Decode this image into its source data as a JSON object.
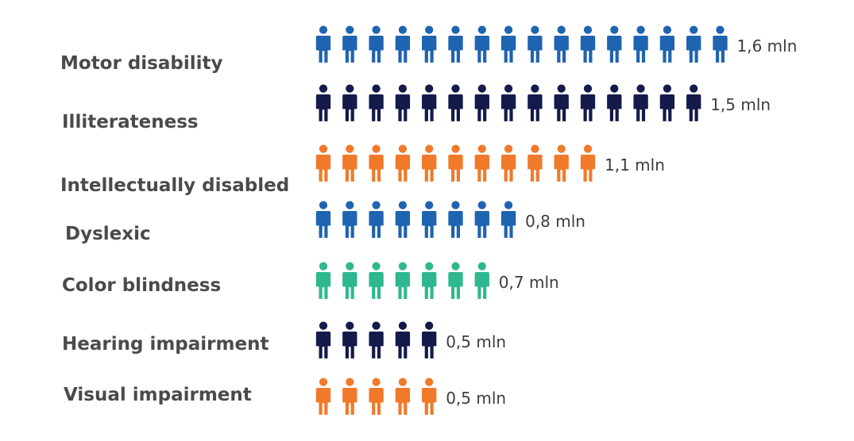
{
  "chart_data": {
    "type": "bar",
    "unit_per_icon": 0.1,
    "categories": [
      "Motor disability",
      "Illiterateness",
      "Intellectually disabled",
      "Dyslexic",
      "Color blindness",
      "Hearing impairment",
      "Visual impairment"
    ],
    "values": [
      1.6,
      1.5,
      1.1,
      0.8,
      0.7,
      0.5,
      0.5
    ],
    "value_labels": [
      "1,6 mln",
      "1,5 mln",
      "1,1 mln",
      "0,8 mln",
      "0,7 mln",
      "0,5 mln",
      "0,5 mln"
    ],
    "colors": [
      "#1f64b0",
      "#141a4a",
      "#f07a2a",
      "#1f64b0",
      "#2fb88f",
      "#141a4a",
      "#f07a2a"
    ],
    "icon": "person-icon"
  }
}
